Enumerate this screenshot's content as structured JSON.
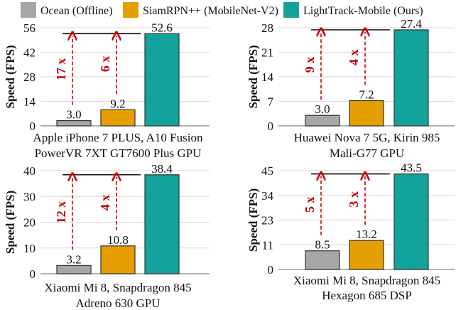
{
  "legend": [
    {
      "label": "Ocean (Offline)",
      "color": "#a6a6a6"
    },
    {
      "label": "SiamRPN++ (MobileNet-V2)",
      "color": "#e69f00"
    },
    {
      "label": "LightTrack-Mobile (Ours)",
      "color": "#12a39c"
    }
  ],
  "colors": {
    "arrow": "#cc0000",
    "grid": "#d9d9d9",
    "edge": "#333333"
  },
  "chart_data": [
    {
      "type": "bar",
      "ylabel": "Speed (FPS)",
      "xlabel": [
        "Apple iPhone 7 PLUS, A10 Fusion",
        "PowerVR 7XT GT7600 Plus GPU"
      ],
      "categories": [
        "Ocean (Offline)",
        "SiamRPN++ (MobileNet-V2)",
        "LightTrack-Mobile (Ours)"
      ],
      "values": [
        3.0,
        9.2,
        52.6
      ],
      "value_labels": [
        "3.0",
        "9.2",
        "52.6"
      ],
      "ylim": [
        0,
        56
      ],
      "yticks": [
        "0",
        "14",
        "28",
        "42",
        "56"
      ],
      "speedups": [
        "17 x",
        "6 x"
      ],
      "grid": true
    },
    {
      "type": "bar",
      "ylabel": "Speed (FPS)",
      "xlabel": [
        "Huawei Nova 7 5G, Kirin 985",
        "Mali-G77 GPU"
      ],
      "categories": [
        "Ocean (Offline)",
        "SiamRPN++ (MobileNet-V2)",
        "LightTrack-Mobile (Ours)"
      ],
      "values": [
        3.0,
        7.2,
        27.4
      ],
      "value_labels": [
        "3.0",
        "7.2",
        "27.4"
      ],
      "ylim": [
        0,
        28
      ],
      "yticks": [
        "0",
        "7",
        "14",
        "21",
        "28"
      ],
      "speedups": [
        "9 x",
        "4 x"
      ],
      "grid": true
    },
    {
      "type": "bar",
      "ylabel": "Speed (FPS)",
      "xlabel": [
        "Xiaomi Mi 8, Snapdragon 845",
        "Adreno 630 GPU"
      ],
      "categories": [
        "Ocean (Offline)",
        "SiamRPN++ (MobileNet-V2)",
        "LightTrack-Mobile (Ours)"
      ],
      "values": [
        3.2,
        10.8,
        38.4
      ],
      "value_labels": [
        "3.2",
        "10.8",
        "38.4"
      ],
      "ylim": [
        0,
        40
      ],
      "yticks": [
        "0",
        "10",
        "20",
        "30",
        "40"
      ],
      "speedups": [
        "12 x",
        "4 x"
      ],
      "grid": true
    },
    {
      "type": "bar",
      "ylabel": "Speed (FPS)",
      "xlabel": [
        "Xiaomi Mi 8, Snapdragon 845",
        "Hexagon 685 DSP"
      ],
      "categories": [
        "Ocean (Offline)",
        "SiamRPN++ (MobileNet-V2)",
        "LightTrack-Mobile (Ours)"
      ],
      "values": [
        8.5,
        13.2,
        43.5
      ],
      "value_labels": [
        "8.5",
        "13.2",
        "43.5"
      ],
      "ylim": [
        0,
        45
      ],
      "yticks": [
        "0",
        "11",
        "23",
        "34",
        "45"
      ],
      "speedups": [
        "5 x",
        "3 x"
      ],
      "grid": true
    }
  ]
}
